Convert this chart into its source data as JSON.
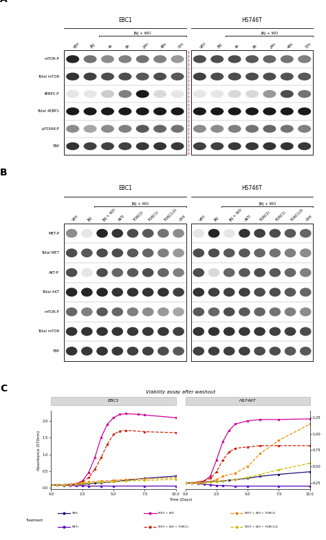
{
  "panel_A": {
    "title": "A",
    "col_labels_A": [
      "VEH",
      "JNJ",
      "4h",
      "8h",
      "24h",
      "48h",
      "72h",
      "VEH",
      "JNJ",
      "4h",
      "8h",
      "24h",
      "48h",
      "72h"
    ],
    "row_labels_A": [
      "mTOR-P",
      "Total mTOR",
      "4EBP1-P",
      "Total 4EBP1",
      "p70S6K-P",
      "TBP"
    ],
    "n_cols": 7,
    "n_rows": 6,
    "band_intensities_left": [
      [
        0.15,
        0.45,
        0.55,
        0.5,
        0.45,
        0.5,
        0.6
      ],
      [
        0.2,
        0.25,
        0.3,
        0.3,
        0.35,
        0.3,
        0.35
      ],
      [
        0.9,
        0.9,
        0.8,
        0.5,
        0.1,
        0.85,
        0.9
      ],
      [
        0.1,
        0.1,
        0.1,
        0.1,
        0.1,
        0.1,
        0.1
      ],
      [
        0.55,
        0.65,
        0.55,
        0.5,
        0.35,
        0.4,
        0.45
      ],
      [
        0.2,
        0.25,
        0.25,
        0.25,
        0.22,
        0.2,
        0.22
      ]
    ],
    "band_intensities_right": [
      [
        0.3,
        0.3,
        0.3,
        0.35,
        0.4,
        0.45,
        0.5
      ],
      [
        0.25,
        0.3,
        0.3,
        0.3,
        0.3,
        0.32,
        0.35
      ],
      [
        0.9,
        0.9,
        0.85,
        0.85,
        0.6,
        0.3,
        0.45
      ],
      [
        0.1,
        0.1,
        0.1,
        0.1,
        0.1,
        0.1,
        0.1
      ],
      [
        0.55,
        0.55,
        0.5,
        0.45,
        0.4,
        0.45,
        0.5
      ],
      [
        0.25,
        0.25,
        0.22,
        0.22,
        0.2,
        0.2,
        0.22
      ]
    ]
  },
  "panel_B": {
    "title": "B",
    "col_labels_B_left": [
      "VEH",
      "JNJ",
      "JNJ + WO",
      "AKTi",
      "TORC2i",
      "TORC1i",
      "TORC1/2i",
      "CHX"
    ],
    "col_labels_B_right": [
      "VEH",
      "JNJ",
      "JNJ + WO",
      "AKTi",
      "TORC2i",
      "TORC1i",
      "TORC1/2i",
      "CHX"
    ],
    "row_labels_B": [
      "MET-P",
      "Total MET",
      "AKT-P",
      "Total AKT",
      "mTOR-P",
      "Total mTOR",
      "TBP"
    ],
    "n_cols": 8,
    "n_rows": 7,
    "band_intensities_left": [
      [
        0.55,
        0.9,
        0.15,
        0.2,
        0.3,
        0.35,
        0.45,
        0.55
      ],
      [
        0.3,
        0.35,
        0.3,
        0.3,
        0.35,
        0.4,
        0.5,
        0.6
      ],
      [
        0.3,
        0.9,
        0.3,
        0.4,
        0.35,
        0.3,
        0.4,
        0.5
      ],
      [
        0.15,
        0.15,
        0.15,
        0.2,
        0.2,
        0.2,
        0.2,
        0.25
      ],
      [
        0.4,
        0.5,
        0.35,
        0.4,
        0.5,
        0.55,
        0.6,
        0.65
      ],
      [
        0.2,
        0.2,
        0.2,
        0.2,
        0.22,
        0.22,
        0.22,
        0.25
      ],
      [
        0.2,
        0.22,
        0.2,
        0.22,
        0.25,
        0.25,
        0.3,
        0.35
      ]
    ],
    "band_intensities_right": [
      [
        0.9,
        0.15,
        0.9,
        0.2,
        0.25,
        0.3,
        0.35,
        0.4
      ],
      [
        0.3,
        0.3,
        0.35,
        0.35,
        0.4,
        0.45,
        0.5,
        0.55
      ],
      [
        0.3,
        0.85,
        0.4,
        0.35,
        0.3,
        0.35,
        0.4,
        0.5
      ],
      [
        0.2,
        0.25,
        0.25,
        0.25,
        0.3,
        0.3,
        0.35,
        0.4
      ],
      [
        0.35,
        0.4,
        0.3,
        0.35,
        0.4,
        0.45,
        0.5,
        0.55
      ],
      [
        0.2,
        0.2,
        0.2,
        0.22,
        0.22,
        0.25,
        0.25,
        0.3
      ],
      [
        0.25,
        0.25,
        0.25,
        0.25,
        0.3,
        0.3,
        0.35,
        0.35
      ]
    ]
  },
  "panel_C": {
    "title": "C",
    "plot_title": "Viability assay after washout",
    "xlabel": "Time (Days)",
    "ylabel": "Absorbance (570nm)",
    "x_ticks": [
      0.0,
      2.5,
      5.0,
      7.5,
      10.0
    ],
    "y_left_ticks": [
      0.0,
      0.5,
      1.0,
      1.5,
      2.0
    ],
    "y_right_ticks": [
      0.25,
      0.5,
      0.75,
      1.0,
      1.25
    ],
    "series": {
      "VEH": {
        "color": "#1a0d7a",
        "style": "solid",
        "marker": "o",
        "ebc1_x": [
          0.0,
          0.5,
          1.0,
          1.5,
          2.0,
          2.5,
          3.0,
          3.5,
          4.0,
          5.0,
          6.0,
          7.5,
          10.0
        ],
        "ebc1_y": [
          0.08,
          0.08,
          0.09,
          0.09,
          0.1,
          0.1,
          0.12,
          0.14,
          0.15,
          0.18,
          0.22,
          0.28,
          0.35
        ],
        "hs746t_x": [
          0.0,
          0.5,
          1.0,
          1.5,
          2.0,
          2.5,
          3.0,
          3.5,
          4.0,
          5.0,
          6.0,
          7.5,
          10.0
        ],
        "hs746t_y": [
          0.25,
          0.25,
          0.25,
          0.26,
          0.27,
          0.27,
          0.28,
          0.29,
          0.3,
          0.32,
          0.35,
          0.38,
          0.42
        ]
      },
      "METi + WO": {
        "color": "#cc0099",
        "style": "solid",
        "marker": "o",
        "ebc1_x": [
          0.0,
          0.5,
          1.0,
          1.5,
          2.0,
          2.5,
          3.0,
          3.5,
          4.0,
          4.5,
          5.0,
          5.5,
          6.0,
          7.0,
          7.5,
          10.0
        ],
        "ebc1_y": [
          0.08,
          0.08,
          0.09,
          0.1,
          0.12,
          0.2,
          0.45,
          0.9,
          1.5,
          1.9,
          2.1,
          2.2,
          2.22,
          2.2,
          2.18,
          2.1
        ],
        "hs746t_x": [
          0.0,
          0.5,
          1.0,
          1.5,
          2.0,
          2.5,
          3.0,
          3.5,
          4.0,
          5.0,
          6.0,
          7.5,
          10.0
        ],
        "hs746t_y": [
          0.25,
          0.25,
          0.26,
          0.28,
          0.35,
          0.6,
          0.88,
          1.05,
          1.15,
          1.2,
          1.22,
          1.22,
          1.23
        ]
      },
      "METi": {
        "color": "#5500bb",
        "style": "solid",
        "marker": "o",
        "ebc1_x": [
          0.0,
          0.5,
          1.0,
          1.5,
          2.0,
          2.5,
          3.0,
          4.0,
          5.0,
          7.5,
          10.0
        ],
        "ebc1_y": [
          0.08,
          0.08,
          0.07,
          0.07,
          0.06,
          0.06,
          0.05,
          0.05,
          0.05,
          0.05,
          0.05
        ],
        "hs746t_x": [
          0.0,
          0.5,
          1.0,
          1.5,
          2.0,
          2.5,
          3.0,
          4.0,
          5.0,
          7.5,
          10.0
        ],
        "hs746t_y": [
          0.25,
          0.25,
          0.24,
          0.23,
          0.22,
          0.21,
          0.21,
          0.2,
          0.2,
          0.2,
          0.2
        ]
      },
      "METi + WO + TORC1i": {
        "color": "#cc2200",
        "style": "dashed",
        "marker": "o",
        "ebc1_x": [
          0.0,
          0.5,
          1.0,
          1.5,
          2.0,
          2.5,
          3.0,
          3.5,
          4.0,
          4.5,
          5.0,
          5.5,
          6.0,
          7.5,
          10.0
        ],
        "ebc1_y": [
          0.08,
          0.08,
          0.09,
          0.1,
          0.12,
          0.18,
          0.3,
          0.55,
          0.9,
          1.3,
          1.6,
          1.7,
          1.72,
          1.68,
          1.65
        ],
        "hs746t_x": [
          0.0,
          0.5,
          1.0,
          1.5,
          2.0,
          2.5,
          3.0,
          3.5,
          4.0,
          5.0,
          6.0,
          7.5,
          10.0
        ],
        "hs746t_y": [
          0.25,
          0.25,
          0.26,
          0.28,
          0.32,
          0.42,
          0.6,
          0.72,
          0.78,
          0.8,
          0.82,
          0.82,
          0.82
        ]
      },
      "METi + WO + TORC2i": {
        "color": "#ee8800",
        "style": "dashed",
        "marker": "o",
        "ebc1_x": [
          0.0,
          0.5,
          1.0,
          1.5,
          2.0,
          2.5,
          3.0,
          4.0,
          5.0,
          6.0,
          7.5,
          10.0
        ],
        "ebc1_y": [
          0.08,
          0.08,
          0.09,
          0.1,
          0.12,
          0.15,
          0.18,
          0.2,
          0.22,
          0.25,
          0.27,
          0.3
        ],
        "hs746t_x": [
          0.0,
          0.5,
          1.0,
          1.5,
          2.0,
          2.5,
          3.0,
          4.0,
          5.0,
          6.0,
          7.5,
          10.0
        ],
        "hs746t_y": [
          0.25,
          0.25,
          0.25,
          0.26,
          0.27,
          0.3,
          0.35,
          0.4,
          0.5,
          0.7,
          0.9,
          1.15
        ]
      },
      "METi + WO + TORC1/2i": {
        "color": "#ccbb00",
        "style": "dashed",
        "marker": "o",
        "ebc1_x": [
          0.0,
          0.5,
          1.0,
          1.5,
          2.0,
          2.5,
          3.0,
          4.0,
          5.0,
          6.0,
          7.5,
          10.0
        ],
        "ebc1_y": [
          0.08,
          0.08,
          0.09,
          0.09,
          0.1,
          0.12,
          0.14,
          0.16,
          0.18,
          0.2,
          0.22,
          0.25
        ],
        "hs746t_x": [
          0.0,
          0.5,
          1.0,
          1.5,
          2.0,
          2.5,
          3.0,
          4.0,
          5.0,
          6.0,
          7.5,
          10.0
        ],
        "hs746t_y": [
          0.25,
          0.25,
          0.25,
          0.25,
          0.26,
          0.27,
          0.28,
          0.3,
          0.33,
          0.38,
          0.45,
          0.55
        ]
      }
    }
  },
  "bg_color": "#ffffff",
  "dashed_line_color": "#dd4444"
}
